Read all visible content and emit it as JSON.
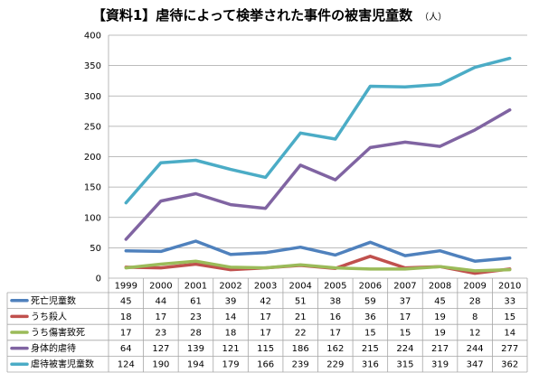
{
  "title": {
    "text": "【資料1】虐待によって検挙された事件の被害児童数",
    "unit": "（人）"
  },
  "chart_data": {
    "type": "line",
    "title": "【資料1】虐待によって検挙された事件の被害児童数",
    "ylabel": "（人）",
    "xlabel": "",
    "ylim": [
      0,
      400
    ],
    "yticks": [
      0,
      50,
      100,
      150,
      200,
      250,
      300,
      350,
      400
    ],
    "grid": "horizontal",
    "legend": "data-table",
    "categories": [
      "1999",
      "2000",
      "2001",
      "2002",
      "2003",
      "2004",
      "2005",
      "2006",
      "2007",
      "2008",
      "2009",
      "2010"
    ],
    "series": [
      {
        "name": "死亡児童数",
        "color": "#4f81bd",
        "values": [
          45,
          44,
          61,
          39,
          42,
          51,
          38,
          59,
          37,
          45,
          28,
          33
        ]
      },
      {
        "name": "うち殺人",
        "color": "#c0504d",
        "values": [
          18,
          17,
          23,
          14,
          17,
          21,
          16,
          36,
          17,
          19,
          8,
          15
        ]
      },
      {
        "name": "うち傷害致死",
        "color": "#9bbb59",
        "values": [
          17,
          23,
          28,
          18,
          17,
          22,
          17,
          15,
          15,
          19,
          12,
          14
        ]
      },
      {
        "name": "身体的虐待",
        "color": "#8064a2",
        "values": [
          64,
          127,
          139,
          121,
          115,
          186,
          162,
          215,
          224,
          217,
          244,
          277
        ]
      },
      {
        "name": "虐待被害児童数",
        "color": "#4bacc6",
        "values": [
          124,
          190,
          194,
          179,
          166,
          239,
          229,
          316,
          315,
          319,
          347,
          362
        ]
      }
    ]
  }
}
